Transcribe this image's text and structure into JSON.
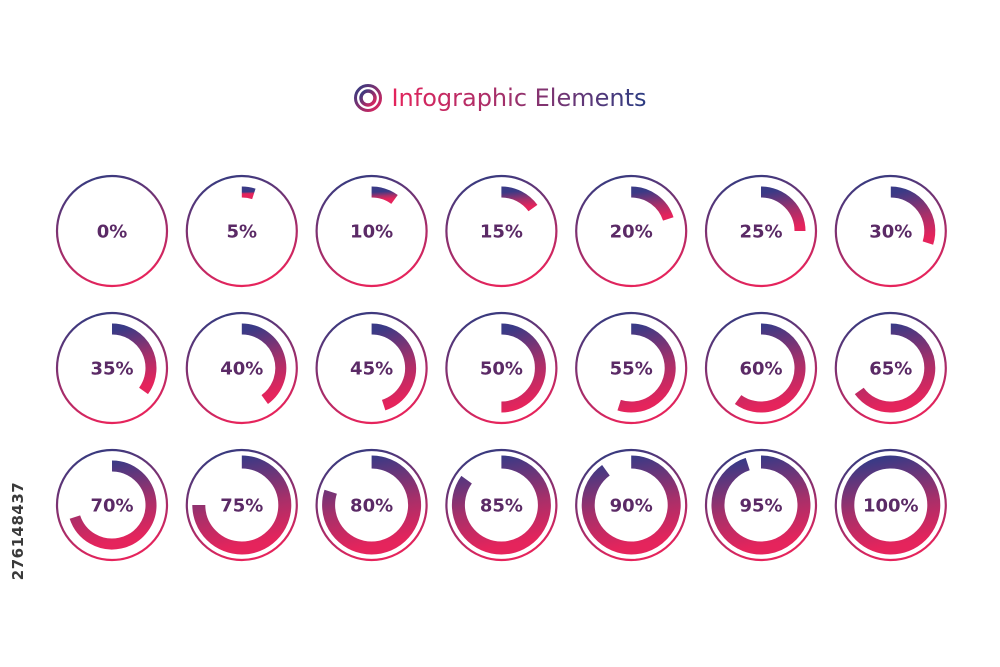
{
  "header": {
    "title": "Infographic Elements"
  },
  "colors": {
    "gradient_start": "#2a3c82",
    "gradient_end": "#e5245c",
    "label": "#5b2a66"
  },
  "gauges": [
    {
      "value": 0,
      "label": "0%"
    },
    {
      "value": 5,
      "label": "5%"
    },
    {
      "value": 10,
      "label": "10%"
    },
    {
      "value": 15,
      "label": "15%"
    },
    {
      "value": 20,
      "label": "20%"
    },
    {
      "value": 25,
      "label": "25%"
    },
    {
      "value": 30,
      "label": "30%"
    },
    {
      "value": 35,
      "label": "35%"
    },
    {
      "value": 40,
      "label": "40%"
    },
    {
      "value": 45,
      "label": "45%"
    },
    {
      "value": 50,
      "label": "50%"
    },
    {
      "value": 55,
      "label": "55%"
    },
    {
      "value": 60,
      "label": "60%"
    },
    {
      "value": 65,
      "label": "65%"
    },
    {
      "value": 70,
      "label": "70%"
    },
    {
      "value": 75,
      "label": "75%"
    },
    {
      "value": 80,
      "label": "80%"
    },
    {
      "value": 85,
      "label": "85%"
    },
    {
      "value": 90,
      "label": "90%"
    },
    {
      "value": 95,
      "label": "95%"
    },
    {
      "value": 100,
      "label": "100%"
    }
  ],
  "watermark": {
    "id_text": "276148437"
  }
}
